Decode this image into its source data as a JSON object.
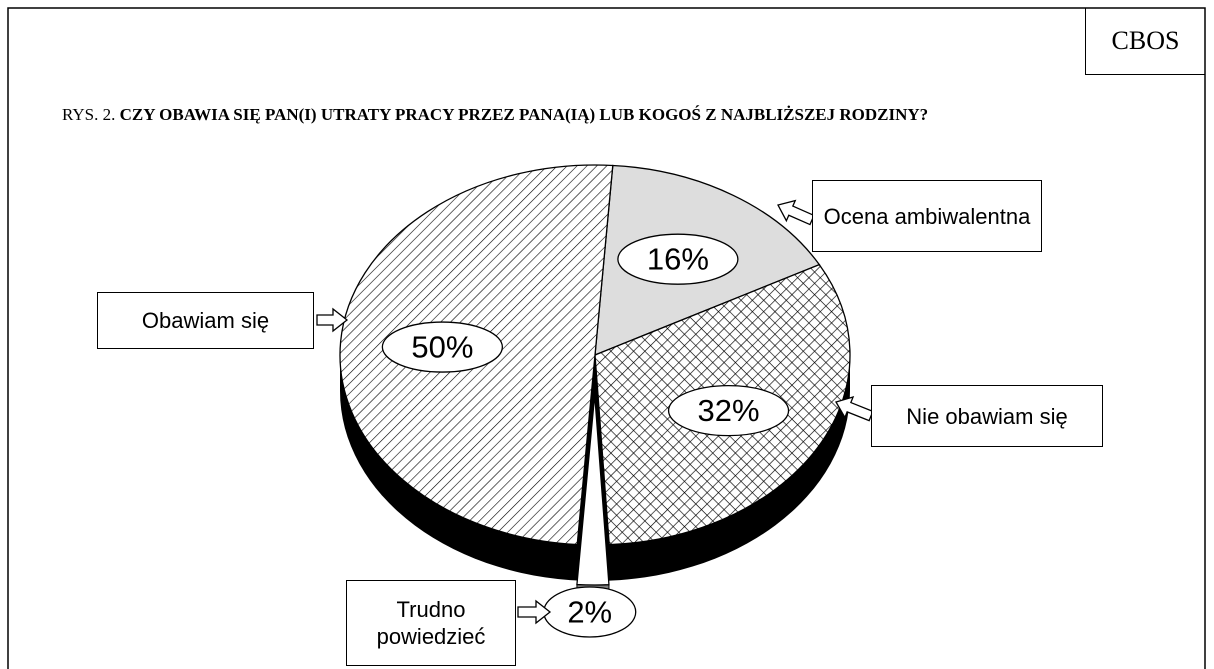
{
  "source": "CBOS",
  "chart_data": {
    "type": "pie",
    "figure_label": "RYS. 2.",
    "title": "CZY OBAWIA SIĘ PAN(I) UTRATY PRACY PRZEZ PANA(IĄ) LUB KOGOŚ Z NAJBLIŻSZEJ RODZINY?",
    "categories": [
      "Ocena ambiwalentna",
      "Nie obawiam się",
      "Trudno powiedzieć",
      "Obawiam się"
    ],
    "values": [
      16,
      32,
      2,
      50
    ],
    "value_labels": [
      "16%",
      "32%",
      "2%",
      "50%"
    ]
  }
}
